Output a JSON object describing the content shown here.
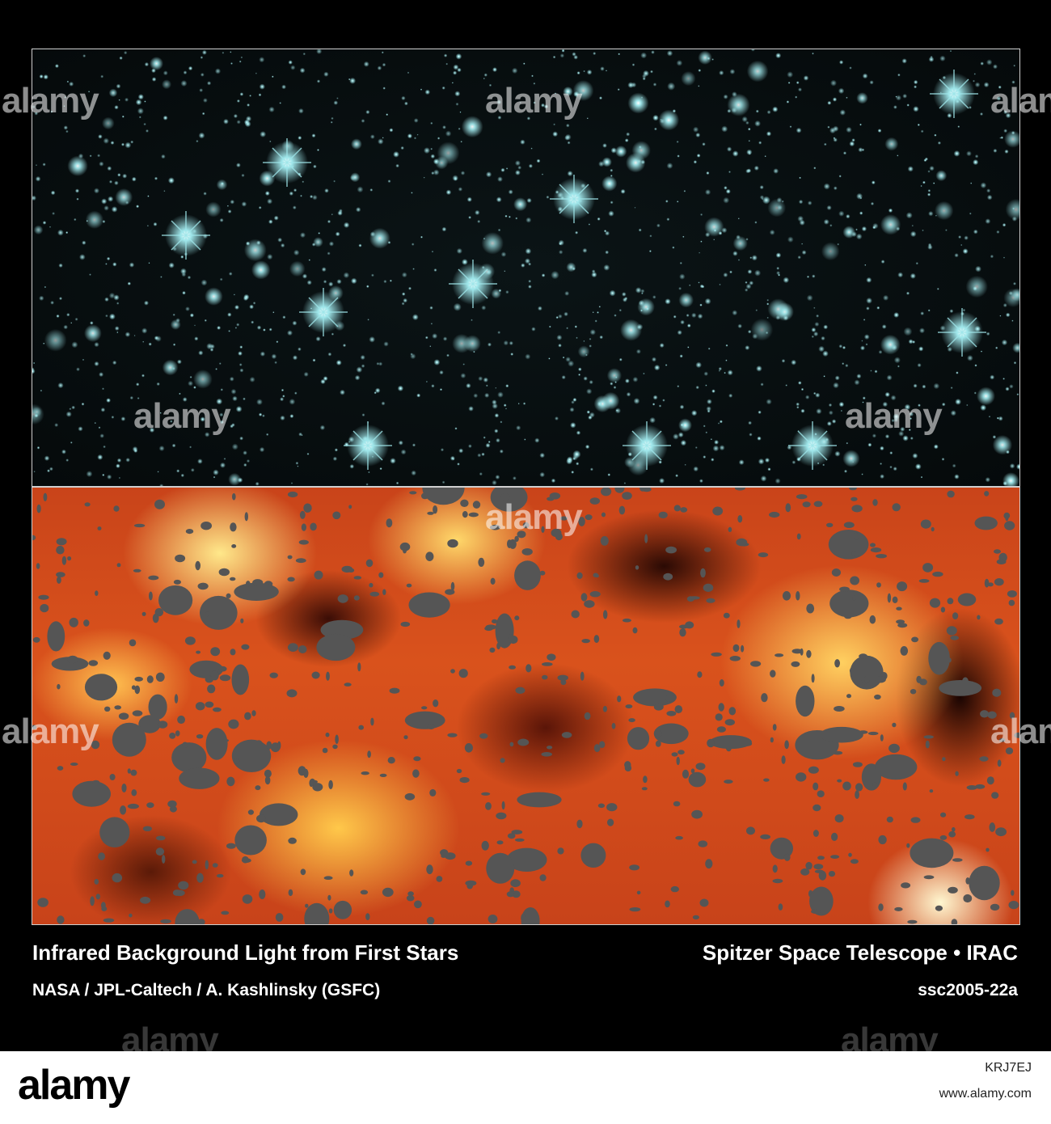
{
  "captions": {
    "title_left": "Infrared Background Light from First Stars",
    "title_right": "Spitzer Space Telescope • IRAC",
    "credit_left": "NASA / JPL-Caltech / A. Kashlinsky (GSFC)",
    "credit_right": "ssc2005-22a"
  },
  "watermark": {
    "text": "alamy"
  },
  "footer": {
    "logo": "alamy",
    "image_id": "KRJ7EJ",
    "url": "www.alamy.com"
  },
  "colors": {
    "star_color": "#9fe6ea",
    "mask_color": "#555555",
    "border": "#cfcfcf"
  }
}
